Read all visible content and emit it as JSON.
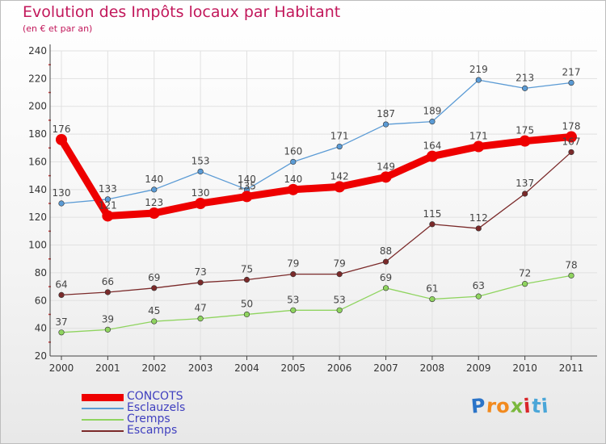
{
  "title": "Evolution des Impôts locaux par Habitant",
  "subtitle": "(en € et par an)",
  "logo": {
    "letters": [
      "P",
      "r",
      "o",
      "x",
      "i",
      "t",
      "i"
    ],
    "colors": [
      "#2b74c8",
      "#f28a1e",
      "#f28a1e",
      "#7ab83c",
      "#d9262a",
      "#4aa6d8",
      "#4aa6d8"
    ]
  },
  "colors": {
    "axis": "#444444",
    "grid": "#e1e1e1",
    "tick_minor": "#cc3333"
  },
  "chart_data": {
    "type": "line",
    "title": "Evolution des Impôts locaux par Habitant",
    "subtitle": "(en € et par an)",
    "xlabel": "",
    "ylabel": "",
    "categories": [
      "2000",
      "2001",
      "2002",
      "2003",
      "2004",
      "2005",
      "2006",
      "2007",
      "2008",
      "2009",
      "2010",
      "2011"
    ],
    "ylim": [
      20,
      240
    ],
    "yticks": [
      20,
      40,
      60,
      80,
      100,
      120,
      140,
      160,
      180,
      200,
      220,
      240
    ],
    "grid": true,
    "legend_position": "bottom-left",
    "series": [
      {
        "name": "CONCOTS",
        "color": "#ee0000",
        "thick": true,
        "values": [
          176,
          121,
          123,
          130,
          135,
          140,
          142,
          149,
          164,
          171,
          175,
          178
        ],
        "labels": [
          "176",
          "121",
          "123",
          "130",
          "135",
          "140",
          "142",
          "149",
          "164",
          "171",
          "175",
          "178"
        ]
      },
      {
        "name": "Esclauzels",
        "color": "#5b9bd5",
        "thick": false,
        "values": [
          130,
          133,
          140,
          153,
          140,
          160,
          171,
          187,
          189,
          219,
          213,
          217
        ],
        "labels": [
          "130",
          "133",
          "140",
          "153",
          "140",
          "160",
          "171",
          "187",
          "189",
          "219",
          "213",
          "217"
        ]
      },
      {
        "name": "Cremps",
        "color": "#8fd45f",
        "thick": false,
        "values": [
          37,
          39,
          45,
          47,
          50,
          53,
          53,
          69,
          61,
          63,
          72,
          78
        ],
        "labels": [
          "37",
          "39",
          "45",
          "47",
          "50",
          "53",
          "53",
          "69",
          "61",
          "63",
          "72",
          "78"
        ]
      },
      {
        "name": "Escamps",
        "color": "#7b2a2a",
        "thick": false,
        "values": [
          64,
          66,
          69,
          73,
          75,
          79,
          79,
          88,
          115,
          112,
          137,
          167
        ],
        "labels": [
          "64",
          "66",
          "69",
          "73",
          "75",
          "79",
          "79",
          "88",
          "115",
          "112",
          "137",
          "167"
        ]
      }
    ]
  }
}
